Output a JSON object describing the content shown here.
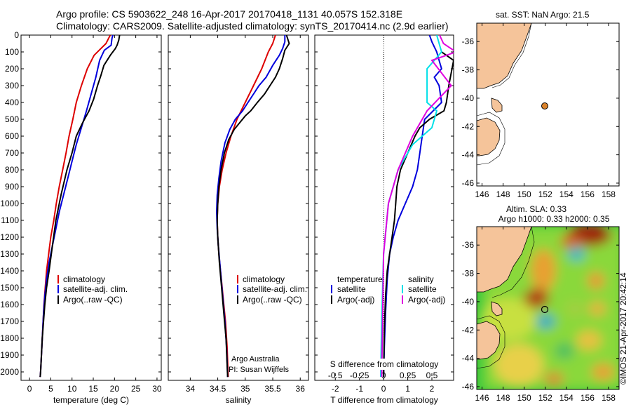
{
  "header": {
    "line1": "Argo profile: CS 5903622_248 16-Apr-2017 20170418_1131 40.057S 152.318E",
    "line2": "Climatology: CARS2009. Satellite-adjusted climatology: synTS_20170414.nc (2.9d earlier)"
  },
  "colors": {
    "climatology": "#dd0000",
    "satellite": "#0000dd",
    "argo": "#000000",
    "sat_salinity": "#00e0e8",
    "argo_salinity_adj": "#e000e0",
    "land": "#f5c49a"
  },
  "credit": "©IMOS 21-Apr-2017 20:42:14",
  "chart_data": [
    {
      "type": "line",
      "title": "",
      "xlabel": "temperature (deg C)",
      "ylabel": "",
      "xlim": [
        -2,
        31
      ],
      "ylim": [
        2050,
        0
      ],
      "xticks": [
        0,
        5,
        10,
        15,
        20,
        25,
        30
      ],
      "xticklabels": [
        "0",
        "5",
        "10",
        "15",
        "20",
        "25",
        "30"
      ],
      "yticks": [
        0,
        100,
        200,
        300,
        400,
        500,
        600,
        700,
        800,
        900,
        1000,
        1100,
        1200,
        1300,
        1400,
        1500,
        1600,
        1700,
        1800,
        1900,
        2000
      ],
      "yticklabels": [
        "0",
        "100",
        "200",
        "300",
        "400",
        "500",
        "600",
        "700",
        "800",
        "900",
        "1000",
        "1100",
        "1200",
        "1300",
        "1400",
        "1500",
        "1600",
        "1700",
        "1800",
        "1900",
        "2000"
      ],
      "legend": {
        "location": "bottom-middle",
        "entries": [
          "climatology",
          "satellite-adj. clim.",
          "Argo(..raw -QC)"
        ]
      },
      "series": [
        {
          "name": "climatology",
          "color": "#dd0000",
          "x": [
            19.0,
            18.6,
            18.0,
            16.8,
            15.2,
            13.6,
            12.2,
            11.0,
            10.2,
            9.3,
            8.6,
            7.8,
            7.0,
            6.3,
            5.7,
            5.0,
            4.5,
            4.0,
            3.7,
            3.4,
            3.2,
            3.0,
            2.8,
            2.7,
            2.6,
            2.5
          ],
          "y": [
            0,
            20,
            50,
            80,
            120,
            200,
            300,
            400,
            500,
            600,
            700,
            800,
            900,
            1000,
            1100,
            1200,
            1300,
            1400,
            1500,
            1600,
            1700,
            1800,
            1900,
            1950,
            2000,
            2030
          ]
        },
        {
          "name": "satellite",
          "color": "#0000dd",
          "x": [
            19.6,
            19.4,
            19.2,
            17.6,
            16.5,
            15.6,
            14.5,
            13.4,
            12.2,
            11.0,
            10.0,
            9.0,
            8.0,
            7.0,
            6.2,
            5.4,
            4.6,
            4.0,
            3.6,
            3.3,
            3.1,
            2.9,
            2.7,
            2.6,
            2.5
          ],
          "y": [
            0,
            20,
            60,
            90,
            150,
            250,
            350,
            450,
            550,
            650,
            750,
            850,
            950,
            1050,
            1150,
            1250,
            1350,
            1450,
            1550,
            1650,
            1750,
            1850,
            1950,
            2000,
            2030
          ]
        },
        {
          "name": "Argo",
          "color": "#000000",
          "x": [
            21.2,
            21.0,
            20.6,
            20.2,
            19.0,
            17.5,
            16.8,
            16.0,
            15.1,
            14.0,
            12.5,
            11.0,
            10.0,
            8.8,
            7.4,
            6.2,
            5.4,
            4.6,
            4.0,
            3.6,
            3.3,
            3.0,
            2.8,
            2.7,
            2.6,
            2.5
          ],
          "y": [
            0,
            30,
            60,
            80,
            120,
            180,
            240,
            300,
            380,
            450,
            520,
            600,
            700,
            800,
            950,
            1100,
            1250,
            1400,
            1500,
            1600,
            1700,
            1800,
            1900,
            1950,
            2000,
            2030
          ]
        }
      ]
    },
    {
      "type": "line",
      "title": "",
      "xlabel": "salinity",
      "ylabel": "",
      "xlim": [
        33.6,
        36.15
      ],
      "ylim": [
        2050,
        0
      ],
      "xticks": [
        34,
        34.5,
        35,
        35.5,
        36
      ],
      "xticklabels": [
        "34",
        "34.5",
        "35",
        "35.5",
        "36"
      ],
      "legend": {
        "location": "bottom-middle",
        "entries": [
          "climatology",
          "satellite-adj. clim.",
          "Argo(..raw -QC)"
        ]
      },
      "annotation": [
        "Argo Australia",
        "PI: Susan Wijffels"
      ],
      "series": [
        {
          "name": "climatology",
          "color": "#dd0000",
          "x": [
            35.55,
            35.5,
            35.42,
            35.3,
            35.15,
            35.0,
            34.85,
            34.74,
            34.65,
            34.58,
            34.53,
            34.5,
            34.49,
            34.5,
            34.52,
            34.55,
            34.58,
            34.61,
            34.64,
            34.67,
            34.69
          ],
          "y": [
            0,
            50,
            100,
            200,
            300,
            400,
            500,
            600,
            700,
            800,
            900,
            1000,
            1100,
            1200,
            1300,
            1400,
            1500,
            1600,
            1700,
            1850,
            2030
          ]
        },
        {
          "name": "satellite",
          "color": "#0000dd",
          "x": [
            35.72,
            35.72,
            35.68,
            35.62,
            35.5,
            35.38,
            35.25,
            35.15,
            35.05,
            34.95,
            34.82,
            34.72,
            34.63,
            34.56,
            34.52,
            34.49,
            34.48,
            34.49,
            34.51,
            34.55,
            34.59,
            34.63,
            34.66,
            34.68
          ],
          "y": [
            0,
            40,
            80,
            120,
            180,
            250,
            300,
            350,
            400,
            450,
            500,
            560,
            640,
            750,
            850,
            950,
            1050,
            1150,
            1250,
            1400,
            1550,
            1700,
            1850,
            2030
          ]
        },
        {
          "name": "Argo",
          "color": "#000000",
          "x": [
            35.75,
            35.8,
            35.72,
            35.68,
            35.62,
            35.55,
            35.45,
            35.35,
            35.22,
            35.1,
            35.0,
            34.9,
            34.8,
            34.7,
            34.62,
            34.56,
            34.52,
            34.5,
            34.49,
            34.5,
            34.53,
            34.57,
            34.61,
            34.65,
            34.68
          ],
          "y": [
            0,
            50,
            90,
            140,
            200,
            250,
            300,
            350,
            400,
            450,
            480,
            520,
            560,
            620,
            700,
            800,
            900,
            1000,
            1100,
            1200,
            1350,
            1500,
            1650,
            1800,
            2030
          ]
        }
      ]
    },
    {
      "type": "line",
      "title": "",
      "xlabel": "T difference from climatology",
      "x2label": "S difference from climatology",
      "ylabel": "",
      "xlim": [
        -2.85,
        2.9
      ],
      "x2lim": [
        -0.7125,
        0.725
      ],
      "ylim": [
        2050,
        0
      ],
      "xticks": [
        -2,
        -1,
        0,
        1,
        2
      ],
      "xticklabels": [
        "-2",
        "-1",
        "0",
        "1",
        "2"
      ],
      "x2ticks": [
        -0.5,
        -0.25,
        0,
        0.25,
        0.5
      ],
      "x2ticklabels": [
        "-0.5",
        "-0.25",
        "0",
        "0.25",
        "0.5"
      ],
      "legend": {
        "location": "bottom-middle",
        "groups": [
          {
            "heading": "temperature",
            "entries": [
              "satellite",
              "Argo(-adj)"
            ]
          },
          {
            "heading": "salinity",
            "entries": [
              "satellite",
              "Argo(-adj)"
            ]
          }
        ]
      },
      "series": [
        {
          "name": "temperature satellite",
          "color": "#0000dd",
          "x": [
            1.9,
            2.0,
            2.2,
            2.3,
            2.4,
            2.1,
            2.3,
            2.4,
            1.7,
            1.6,
            1.5,
            1.4,
            1.2,
            0.9,
            0.6,
            0.4,
            0.25,
            0.15,
            0.08,
            0.03,
            0.0
          ],
          "y": [
            0,
            40,
            100,
            150,
            200,
            250,
            300,
            400,
            500,
            600,
            700,
            800,
            900,
            1000,
            1100,
            1200,
            1300,
            1450,
            1650,
            1850,
            2030
          ]
        },
        {
          "name": "temperature Argo(-adj)",
          "color": "#000000",
          "x": [
            2.4,
            2.9,
            2.7,
            2.6,
            2.5,
            1.9,
            1.5,
            1.3,
            1.0,
            0.7,
            0.55,
            0.5,
            0.45,
            0.35,
            0.25,
            0.15,
            0.08,
            0.03,
            0.0
          ],
          "y": [
            100,
            150,
            300,
            400,
            450,
            500,
            550,
            600,
            700,
            800,
            900,
            1000,
            1100,
            1200,
            1300,
            1400,
            1550,
            1750,
            2030
          ]
        },
        {
          "name": "salinity satellite",
          "color": "#00e0e8",
          "x": [
            0.55,
            0.6,
            0.45,
            0.45,
            0.55,
            0.5,
            0.3,
            0.15,
            0.05,
            0.0,
            -0.02,
            -0.03
          ],
          "y": [
            0,
            100,
            200,
            400,
            450,
            550,
            650,
            800,
            1000,
            1300,
            1700,
            2030
          ]
        },
        {
          "name": "salinity Argo(-adj)",
          "color": "#e000e0",
          "x": [
            0.58,
            0.62,
            0.75,
            0.5,
            0.7,
            0.45,
            0.3,
            0.15,
            0.05,
            0.0,
            -0.02
          ],
          "y": [
            0,
            50,
            100,
            150,
            300,
            450,
            600,
            800,
            1000,
            1300,
            2030
          ]
        }
      ]
    },
    {
      "type": "map",
      "title": "sat. SST: NaN Argo: 21.5",
      "lon_range": [
        145.5,
        159
      ],
      "lat_range": [
        -46.2,
        -34.7
      ],
      "xticklabels": [
        "146",
        "148",
        "150",
        "152",
        "154",
        "156",
        "158"
      ],
      "yticklabels": [
        "-36",
        "-38",
        "-40",
        "-42",
        "-44",
        "-46"
      ],
      "points": [
        {
          "label": "Argo",
          "lon": 152.3,
          "lat": -40.06
        }
      ]
    },
    {
      "type": "heatmap",
      "title": "Altim. SLA: 0.33",
      "subtitle": "Argo h1000: 0.33 h2000: 0.35",
      "lon_range": [
        145.5,
        159
      ],
      "lat_range": [
        -46.2,
        -34.7
      ],
      "xticklabels": [
        "146",
        "148",
        "150",
        "152",
        "154",
        "156",
        "158"
      ],
      "yticklabels": [
        "-36",
        "-38",
        "-40",
        "-42",
        "-44",
        "-46"
      ],
      "points": [
        {
          "label": "Argo",
          "lon": 152.3,
          "lat": -40.06
        }
      ]
    }
  ]
}
